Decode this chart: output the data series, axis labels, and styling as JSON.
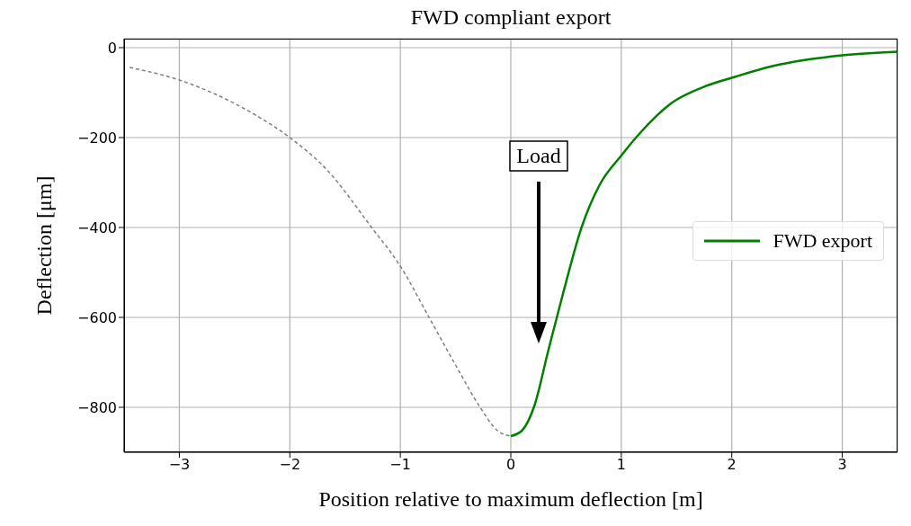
{
  "chart_data": {
    "type": "line",
    "title": "FWD compliant export",
    "xlabel": "Position relative to maximum deflection [m]",
    "ylabel": "Deflection [μm]",
    "xlim": [
      -3.5,
      3.5
    ],
    "xticks": [
      -3,
      -2,
      -1,
      0,
      1,
      2,
      3
    ],
    "ylim": [
      -900,
      20
    ],
    "yticks": [
      -800,
      -600,
      -400,
      -200,
      0
    ],
    "grid": true,
    "legend": "right",
    "marker": "none",
    "annotations": [
      "Load"
    ],
    "series": [
      {
        "color": "#808080",
        "line_style": "dashed",
        "x": [
          -3.45,
          -3.0,
          -2.67,
          -2.31,
          -2.0,
          -1.66,
          -1.26,
          -1.0,
          -0.74,
          -0.5,
          -0.28,
          -0.12,
          0
        ],
        "values": [
          -44,
          -72,
          -104,
          -150,
          -200,
          -273,
          -400,
          -486,
          -600,
          -706,
          -799,
          -852,
          -864
        ]
      },
      {
        "name": "FWD export",
        "color": "#008000",
        "line_style": "solid",
        "x": [
          0,
          0.1,
          0.21,
          0.34,
          0.48,
          0.64,
          0.8,
          1.0,
          1.18,
          1.45,
          1.78,
          2.0,
          2.37,
          3.0,
          3.5
        ],
        "values": [
          -864,
          -852,
          -799,
          -673,
          -540,
          -400,
          -307,
          -240,
          -187,
          -124,
          -84,
          -67,
          -41,
          -17,
          -9
        ]
      }
    ]
  }
}
